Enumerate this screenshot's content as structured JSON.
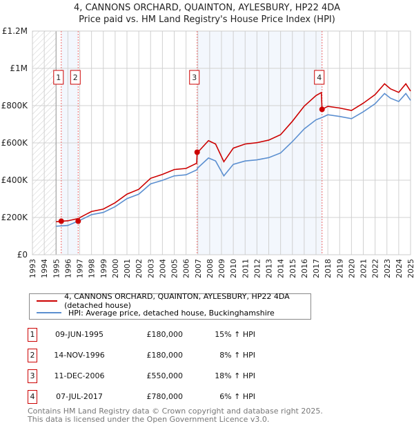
{
  "chart_data": {
    "type": "line",
    "title": "4, CANNONS ORCHARD, QUAINTON, AYLESBURY, HP22 4DA",
    "subtitle": "Price paid vs. HM Land Registry's House Price Index (HPI)",
    "xlim": [
      1993,
      2025
    ],
    "ylim": [
      0,
      1200000
    ],
    "x_ticks": [
      "1993",
      "1994",
      "1995",
      "1996",
      "1997",
      "1998",
      "1999",
      "2000",
      "2001",
      "2002",
      "2003",
      "2004",
      "2005",
      "2006",
      "2007",
      "2008",
      "2009",
      "2010",
      "2011",
      "2012",
      "2013",
      "2014",
      "2015",
      "2016",
      "2017",
      "2018",
      "2019",
      "2020",
      "2021",
      "2022",
      "2023",
      "2024",
      "2025"
    ],
    "y_ticks": [
      {
        "v": 0,
        "label": "£0"
      },
      {
        "v": 200000,
        "label": "£200K"
      },
      {
        "v": 400000,
        "label": "£400K"
      },
      {
        "v": 600000,
        "label": "£600K"
      },
      {
        "v": 800000,
        "label": "£800K"
      },
      {
        "v": 1000000,
        "label": "£1M"
      },
      {
        "v": 1200000,
        "label": "£1.2M"
      }
    ],
    "grid": true,
    "hatched_before": 1995.0,
    "series": [
      {
        "name": "4, CANNONS ORCHARD, QUAINTON, AYLESBURY, HP22 4DA (detached house)",
        "color": "#cc0000",
        "x": [
          1995,
          1995.44,
          1996,
          1996.86,
          1996.87,
          1997,
          1998,
          1999,
          2000,
          2001,
          2002,
          2003,
          2004,
          2005,
          2006,
          2006.9,
          2006.94,
          2007,
          2007.9,
          2008.5,
          2009.2,
          2010,
          2011,
          2012,
          2013,
          2014,
          2015,
          2016,
          2017,
          2017.45,
          2017.51,
          2018,
          2019,
          2020,
          2021,
          2022,
          2022.8,
          2023.3,
          2024,
          2024.6,
          2025
        ],
        "y": [
          177000,
          180000,
          182000,
          194000,
          180000,
          199000,
          232000,
          245000,
          279000,
          325000,
          351000,
          410000,
          431000,
          457000,
          463000,
          491000,
          550000,
          550000,
          612000,
          594000,
          499000,
          572000,
          594000,
          601000,
          615000,
          644000,
          716000,
          797000,
          854000,
          870000,
          780000,
          796000,
          787000,
          774000,
          813000,
          859000,
          917000,
          890000,
          871000,
          917000,
          878000
        ]
      },
      {
        "name": "HPI: Average price, detached house, Buckinghamshire",
        "color": "#5b8fd0",
        "x": [
          1995,
          1996,
          1997,
          1998,
          1999,
          2000,
          2001,
          2002,
          2003,
          2004,
          2005,
          2006,
          2006.9,
          2007,
          2007.9,
          2008.5,
          2009.2,
          2010,
          2011,
          2012,
          2013,
          2014,
          2015,
          2016,
          2017,
          2017.5,
          2018,
          2019,
          2020,
          2021,
          2022,
          2022.8,
          2023.3,
          2024,
          2024.6,
          2025
        ],
        "y": [
          153000,
          157000,
          184000,
          215000,
          227000,
          258000,
          301000,
          325000,
          380000,
          399000,
          423000,
          429000,
          455000,
          466000,
          519000,
          503000,
          423000,
          485000,
          503000,
          509000,
          521000,
          546000,
          607000,
          675000,
          724000,
          736000,
          751000,
          742000,
          730000,
          767000,
          810000,
          865000,
          840000,
          822000,
          865000,
          828000
        ]
      }
    ],
    "sales": [
      {
        "id": "1",
        "x": 1995.44,
        "date": "09-JUN-1995",
        "price": 180000,
        "price_label": "£180,000",
        "hpi": "15% ↑ HPI"
      },
      {
        "id": "2",
        "x": 1996.87,
        "date": "14-NOV-1996",
        "price": 180000,
        "price_label": "£180,000",
        "hpi": "8% ↑ HPI"
      },
      {
        "id": "3",
        "x": 2006.94,
        "date": "11-DEC-2006",
        "price": 550000,
        "price_label": "£550,000",
        "hpi": "18% ↑ HPI"
      },
      {
        "id": "4",
        "x": 2017.51,
        "date": "07-JUL-2017",
        "price": 780000,
        "price_label": "£780,000",
        "hpi": "6% ↑ HPI"
      }
    ],
    "shaded_ranges": [
      [
        1995.44,
        1996.87
      ],
      [
        2006.94,
        2017.51
      ]
    ],
    "legend_position": "below"
  },
  "footer": {
    "line1": "Contains HM Land Registry data © Crown copyright and database right 2025.",
    "line2": "This data is licensed under the Open Government Licence v3.0."
  }
}
